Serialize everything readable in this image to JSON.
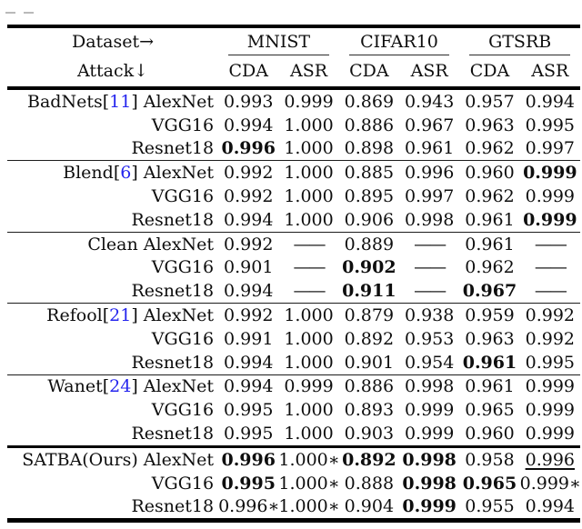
{
  "colors": {
    "text": "#0e0e0e",
    "citation": "#2626ee",
    "rule": "#000000"
  },
  "table": {
    "header": {
      "dataset_label": "Dataset→",
      "attack_label": "Attack↓",
      "groups": [
        "MNIST",
        "CIFAR10",
        "GTSRB"
      ],
      "subcols": [
        "CDA",
        "ASR"
      ]
    },
    "rows": [
      {
        "attack": "BadNets",
        "cite": "11",
        "model": "AlexNet",
        "sep": "",
        "values": [
          "0.993",
          "0.999",
          "0.869",
          "0.943",
          "0.957",
          "0.994"
        ],
        "styles": [
          "",
          "",
          "",
          "",
          "",
          ""
        ]
      },
      {
        "attack": "",
        "cite": "",
        "model": "VGG16",
        "sep": "",
        "values": [
          "0.994",
          "1.000",
          "0.886",
          "0.967",
          "0.963",
          "0.995"
        ],
        "styles": [
          "",
          "",
          "",
          "",
          "",
          ""
        ]
      },
      {
        "attack": "",
        "cite": "",
        "model": "Resnet18",
        "sep": "",
        "values": [
          "0.996",
          "1.000",
          "0.898",
          "0.961",
          "0.962",
          "0.997"
        ],
        "styles": [
          "b",
          "",
          "",
          "",
          "",
          ""
        ]
      },
      {
        "attack": "Blend",
        "cite": "6",
        "model": "AlexNet",
        "sep": "thin",
        "values": [
          "0.992",
          "1.000",
          "0.885",
          "0.996",
          "0.960",
          "0.999"
        ],
        "styles": [
          "",
          "",
          "",
          "",
          "",
          "b"
        ]
      },
      {
        "attack": "",
        "cite": "",
        "model": "VGG16",
        "sep": "",
        "values": [
          "0.992",
          "1.000",
          "0.895",
          "0.997",
          "0.962",
          "0.999"
        ],
        "styles": [
          "",
          "",
          "",
          "",
          "",
          ""
        ]
      },
      {
        "attack": "",
        "cite": "",
        "model": "Resnet18",
        "sep": "",
        "values": [
          "0.994",
          "1.000",
          "0.906",
          "0.998",
          "0.961",
          "0.999"
        ],
        "styles": [
          "",
          "",
          "",
          "",
          "",
          "b"
        ]
      },
      {
        "attack": "Clean",
        "cite": "",
        "model": "AlexNet",
        "sep": "thin",
        "values": [
          "0.992",
          "——",
          "0.889",
          "——",
          "0.961",
          "——"
        ],
        "styles": [
          "",
          "",
          "",
          "",
          "",
          ""
        ]
      },
      {
        "attack": "",
        "cite": "",
        "model": "VGG16",
        "sep": "",
        "values": [
          "0.901",
          "——",
          "0.902",
          "——",
          "0.962",
          "——"
        ],
        "styles": [
          "",
          "",
          "b",
          "",
          "",
          ""
        ]
      },
      {
        "attack": "",
        "cite": "",
        "model": "Resnet18",
        "sep": "",
        "values": [
          "0.994",
          "——",
          "0.911",
          "——",
          "0.967",
          "——"
        ],
        "styles": [
          "",
          "",
          "b",
          "",
          "b",
          ""
        ]
      },
      {
        "attack": "Refool",
        "cite": "21",
        "model": "AlexNet",
        "sep": "thin",
        "values": [
          "0.992",
          "1.000",
          "0.879",
          "0.938",
          "0.959",
          "0.992"
        ],
        "styles": [
          "",
          "",
          "",
          "",
          "",
          ""
        ]
      },
      {
        "attack": "",
        "cite": "",
        "model": "VGG16",
        "sep": "",
        "values": [
          "0.991",
          "1.000",
          "0.892",
          "0.953",
          "0.963",
          "0.992"
        ],
        "styles": [
          "",
          "",
          "",
          "",
          "",
          ""
        ]
      },
      {
        "attack": "",
        "cite": "",
        "model": "Resnet18",
        "sep": "",
        "values": [
          "0.994",
          "1.000",
          "0.901",
          "0.954",
          "0.961",
          "0.995"
        ],
        "styles": [
          "",
          "",
          "",
          "",
          "b",
          ""
        ]
      },
      {
        "attack": "Wanet",
        "cite": "24",
        "model": "AlexNet",
        "sep": "thin",
        "values": [
          "0.994",
          "0.999",
          "0.886",
          "0.998",
          "0.961",
          "0.999"
        ],
        "styles": [
          "",
          "",
          "",
          "",
          "",
          ""
        ]
      },
      {
        "attack": "",
        "cite": "",
        "model": "VGG16",
        "sep": "",
        "values": [
          "0.995",
          "1.000",
          "0.893",
          "0.999",
          "0.965",
          "0.999"
        ],
        "styles": [
          "",
          "",
          "",
          "",
          "",
          ""
        ]
      },
      {
        "attack": "",
        "cite": "",
        "model": "Resnet18",
        "sep": "",
        "values": [
          "0.995",
          "1.000",
          "0.903",
          "0.999",
          "0.960",
          "0.999"
        ],
        "styles": [
          "",
          "",
          "",
          "",
          "",
          ""
        ]
      },
      {
        "attack": "SATBA(Ours)",
        "cite": "",
        "model": "AlexNet",
        "sep": "thick",
        "values": [
          "0.996",
          "1.000∗",
          "0.892",
          "0.998",
          "0.958",
          "0.996"
        ],
        "styles": [
          "b",
          "",
          "b",
          "b",
          "",
          "u"
        ]
      },
      {
        "attack": "",
        "cite": "",
        "model": "VGG16",
        "sep": "",
        "values": [
          "0.995",
          "1.000∗",
          "0.888",
          "0.998",
          "0.965",
          "0.999∗"
        ],
        "styles": [
          "b",
          "",
          "",
          "b",
          "b",
          ""
        ]
      },
      {
        "attack": "",
        "cite": "",
        "model": "Resnet18",
        "sep": "",
        "values": [
          "0.996∗",
          "1.000∗",
          "0.904",
          "0.999",
          "0.955",
          "0.994"
        ],
        "styles": [
          "",
          "",
          "",
          "b",
          "",
          ""
        ]
      }
    ]
  }
}
